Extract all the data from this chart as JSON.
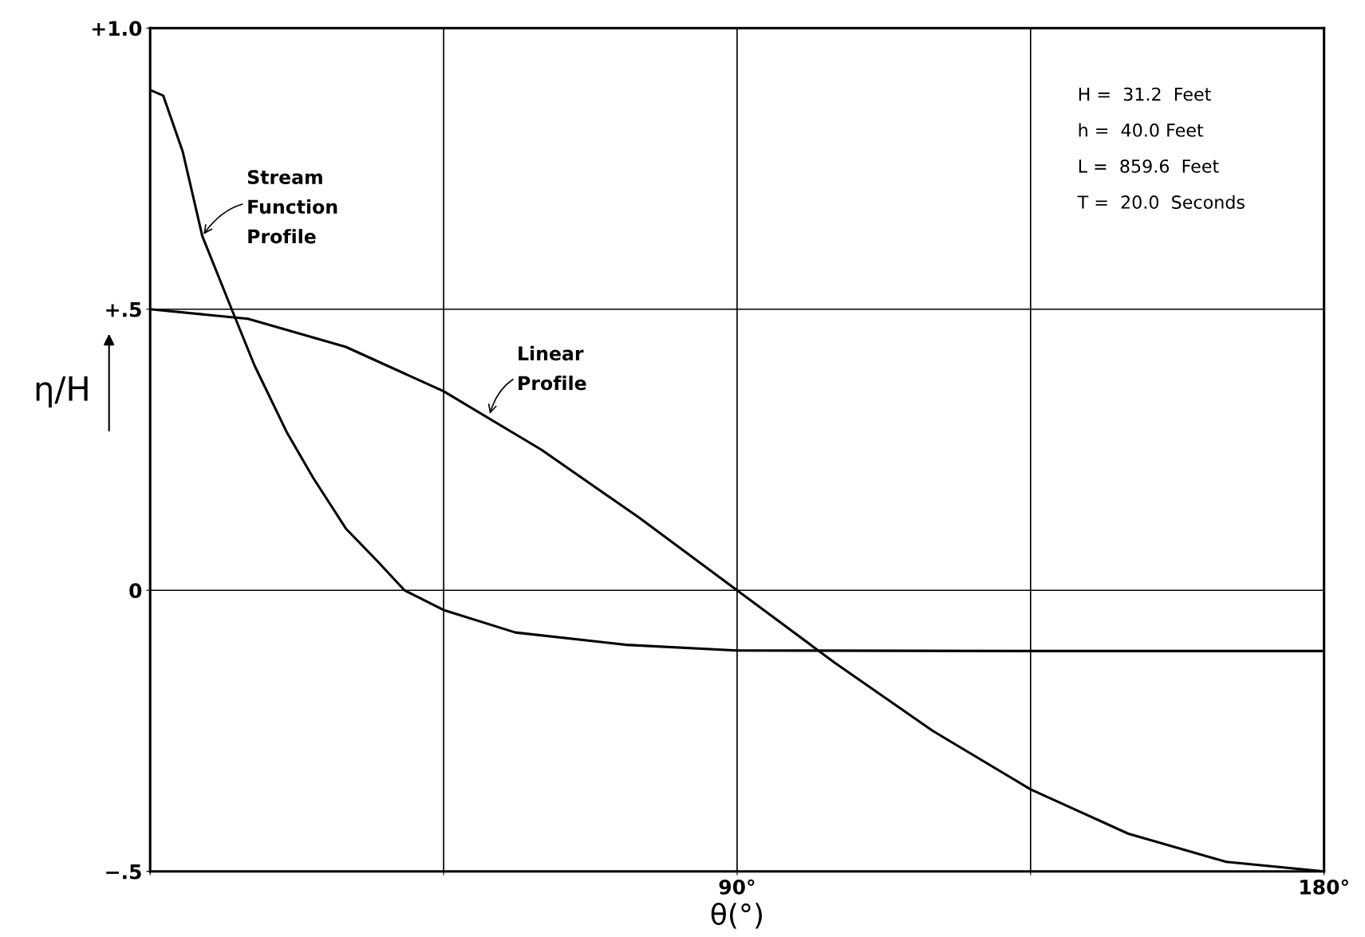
{
  "chart_data": {
    "type": "line",
    "xlabel": "θ(°)",
    "ylabel": "η/H",
    "xlim": [
      0,
      180
    ],
    "ylim": [
      -0.5,
      1.0
    ],
    "xticks": [
      {
        "value": 0,
        "label": null
      },
      {
        "value": 45,
        "label": null
      },
      {
        "value": 90,
        "label": "90°"
      },
      {
        "value": 135,
        "label": null
      },
      {
        "value": 180,
        "label": "180°"
      }
    ],
    "yticks": [
      {
        "value": -0.5,
        "label": "−.5"
      },
      {
        "value": 0,
        "label": "0"
      },
      {
        "value": 0.5,
        "label": "+.5"
      },
      {
        "value": 1.0,
        "label": "+1.0"
      }
    ],
    "grid": true,
    "legend": false,
    "marker": "none",
    "line_style": "solid",
    "series": [
      {
        "color": "#000000",
        "x": [
          0,
          2,
          5,
          8,
          12.5,
          16,
          21,
          25,
          30,
          35,
          39,
          45,
          56,
          73,
          90,
          135,
          180
        ],
        "values": [
          0.89,
          0.88,
          0.78,
          0.63,
          0.5,
          0.4,
          0.28,
          0.2,
          0.11,
          0.05,
          0,
          -0.035,
          -0.075,
          -0.097,
          -0.107,
          -0.108,
          -0.108
        ]
      },
      {
        "color": "#000000",
        "x": [
          0,
          15,
          30,
          45,
          60,
          75,
          90,
          105,
          120,
          135,
          150,
          165,
          180
        ],
        "values": [
          0.5,
          0.483,
          0.433,
          0.354,
          0.25,
          0.129,
          0,
          -0.129,
          -0.25,
          -0.354,
          -0.433,
          -0.483,
          -0.5
        ]
      }
    ],
    "annotations": [
      {
        "text": "Stream\nFunction\nProfile",
        "x": 8,
        "y": 0.63
      },
      {
        "text": "Linear\nProfile",
        "x": 52,
        "y": 0.31
      },
      "H =  31.2  Feet\nh =  40.0 Feet\nL =  859.6  Feet\nT =  20.0  Seconds"
    ]
  }
}
